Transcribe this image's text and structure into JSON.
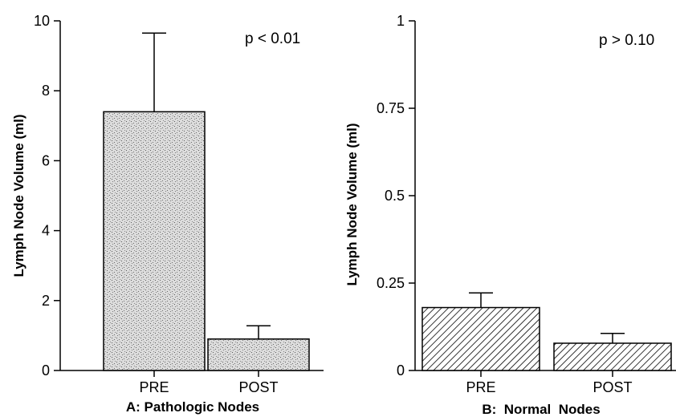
{
  "chart_data": [
    {
      "type": "bar",
      "categories": [
        "PRE",
        "POST"
      ],
      "values": [
        7.4,
        0.9
      ],
      "error_upper": [
        9.65,
        1.28
      ],
      "ylabel": "Lymph Node Volume (ml)",
      "xlabel": "A:  Pathologic Nodes",
      "ylim": [
        0,
        10
      ],
      "yticks": [
        "0",
        "2",
        "4",
        "6",
        "8",
        "10"
      ],
      "yticks_values": [
        0,
        2,
        4,
        6,
        8,
        10
      ],
      "annotation": "p < 0.01",
      "fill": "stippled",
      "grid": false
    },
    {
      "type": "bar",
      "categories": [
        "PRE",
        "POST"
      ],
      "values": [
        0.18,
        0.078
      ],
      "error_upper": [
        0.222,
        0.106
      ],
      "ylabel": "Lymph Node Volume (ml)",
      "xlabel": "B:  Normal  Nodes",
      "ylim": [
        0,
        1
      ],
      "yticks": [
        "0",
        "0.25",
        "0.5",
        "0.75",
        "1"
      ],
      "yticks_values": [
        0,
        0.25,
        0.5,
        0.75,
        1
      ],
      "annotation": "p > 0.10",
      "fill": "hatched",
      "grid": false
    }
  ]
}
